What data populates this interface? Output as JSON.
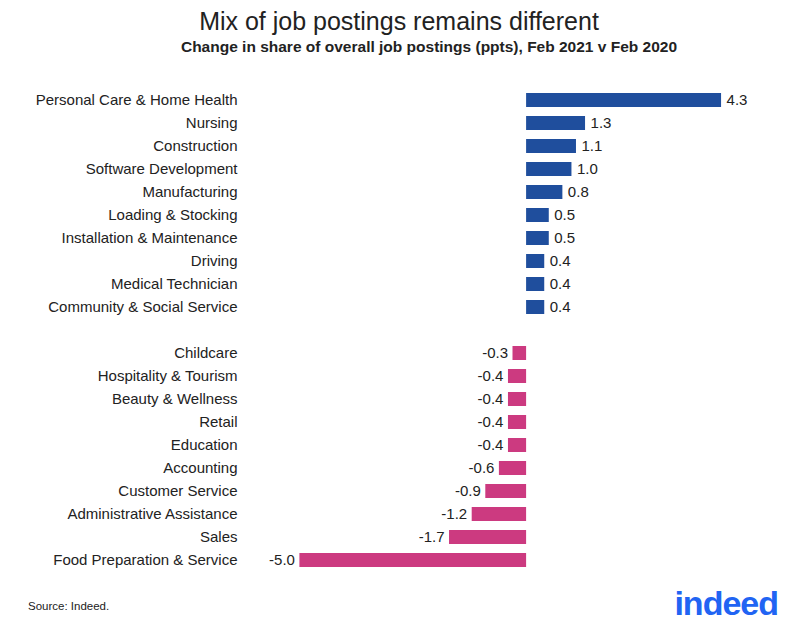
{
  "chart_data": {
    "type": "bar",
    "orientation": "horizontal",
    "title": "Mix of job postings remains different",
    "subtitle": "Change in share of overall job postings (ppts), Feb 2021 v Feb 2020",
    "caption": "Source: Indeed.",
    "logo_text": "indeed",
    "categories": [
      "Personal Care & Home Health",
      "Nursing",
      "Construction",
      "Software Development",
      "Manufacturing",
      "Loading & Stocking",
      "Installation & Maintenance",
      "Driving",
      "Medical Technician",
      "Community & Social Service",
      "Childcare",
      "Hospitality & Tourism",
      "Beauty & Wellness",
      "Retail",
      "Education",
      "Accounting",
      "Customer Service",
      "Administrative Assistance",
      "Sales",
      "Food Preparation & Service"
    ],
    "values": [
      4.3,
      1.3,
      1.1,
      1.0,
      0.8,
      0.5,
      0.5,
      0.4,
      0.4,
      0.4,
      -0.3,
      -0.4,
      -0.4,
      -0.4,
      -0.4,
      -0.6,
      -0.9,
      -1.2,
      -1.7,
      -5.0
    ],
    "value_labels": [
      "4.3",
      "1.3",
      "1.1",
      "1.0",
      "0.8",
      "0.5",
      "0.5",
      "0.4",
      "0.4",
      "0.4",
      "-0.3",
      "-0.4",
      "-0.4",
      "-0.4",
      "-0.4",
      "-0.6",
      "-0.9",
      "-1.2",
      "-1.7",
      "-5.0"
    ],
    "colors": [
      "#1f4e9d",
      "#1f4e9d",
      "#1f4e9d",
      "#1f4e9d",
      "#1f4e9d",
      "#1f4e9d",
      "#1f4e9d",
      "#1f4e9d",
      "#1f4e9d",
      "#1f4e9d",
      "#cc3a80",
      "#cc3a80",
      "#cc3a80",
      "#cc3a80",
      "#cc3a80",
      "#cc3a80",
      "#cc3a80",
      "#cc3a80",
      "#cc3a80",
      "#cc3a80"
    ],
    "xlim": [
      -6.2,
      5.6
    ],
    "xticks": [],
    "grid": false,
    "data_labels": true,
    "tick_labels": "y"
  }
}
